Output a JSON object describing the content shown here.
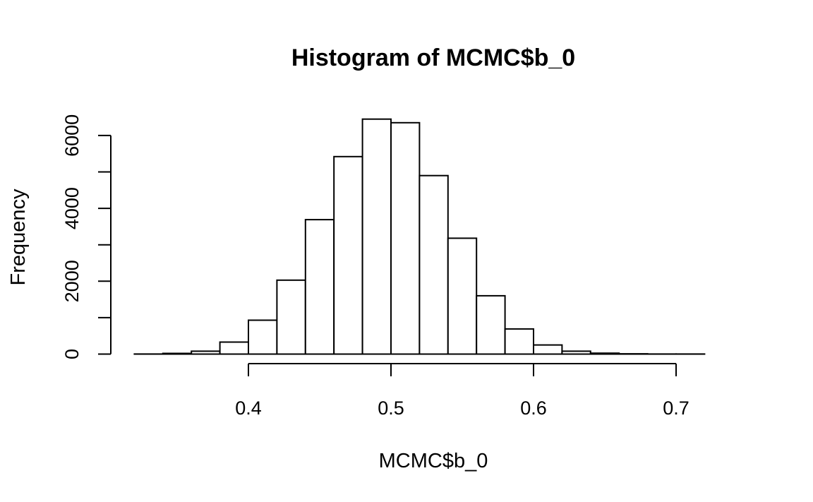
{
  "chart_data": {
    "type": "bar",
    "title": "Histogram of MCMC$b_0",
    "xlabel": "MCMC$b_0",
    "ylabel": "Frequency",
    "x_ticks": [
      0.4,
      0.5,
      0.6,
      0.7
    ],
    "x_tick_labels": [
      "0.4",
      "0.5",
      "0.6",
      "0.7"
    ],
    "y_ticks": [
      0,
      2000,
      4000,
      6000
    ],
    "y_tick_labels": [
      "0",
      "2000",
      "4000",
      "6000"
    ],
    "y_minor_ticks": [
      1000,
      3000,
      5000
    ],
    "bin_width": 0.02,
    "bins": [
      {
        "start": 0.32,
        "end": 0.34,
        "count": 2
      },
      {
        "start": 0.34,
        "end": 0.36,
        "count": 20
      },
      {
        "start": 0.36,
        "end": 0.38,
        "count": 80
      },
      {
        "start": 0.38,
        "end": 0.4,
        "count": 330
      },
      {
        "start": 0.4,
        "end": 0.42,
        "count": 930
      },
      {
        "start": 0.42,
        "end": 0.44,
        "count": 2030
      },
      {
        "start": 0.44,
        "end": 0.46,
        "count": 3690
      },
      {
        "start": 0.46,
        "end": 0.48,
        "count": 5420
      },
      {
        "start": 0.48,
        "end": 0.5,
        "count": 6450
      },
      {
        "start": 0.5,
        "end": 0.52,
        "count": 6350
      },
      {
        "start": 0.52,
        "end": 0.54,
        "count": 4900
      },
      {
        "start": 0.54,
        "end": 0.56,
        "count": 3180
      },
      {
        "start": 0.56,
        "end": 0.58,
        "count": 1600
      },
      {
        "start": 0.58,
        "end": 0.6,
        "count": 690
      },
      {
        "start": 0.6,
        "end": 0.62,
        "count": 250
      },
      {
        "start": 0.62,
        "end": 0.64,
        "count": 80
      },
      {
        "start": 0.64,
        "end": 0.66,
        "count": 25
      },
      {
        "start": 0.66,
        "end": 0.68,
        "count": 8
      },
      {
        "start": 0.68,
        "end": 0.7,
        "count": 2
      },
      {
        "start": 0.7,
        "end": 0.72,
        "count": 1
      },
      {
        "start": 0.72,
        "end": 0.74,
        "count": 0
      }
    ],
    "xlim": [
      0.32,
      0.74
    ],
    "ylim": [
      0,
      6450
    ],
    "grid": false,
    "legend": "none",
    "colors": {
      "bar_fill": "#ffffff",
      "bar_stroke": "#000000",
      "background": "#ffffff"
    }
  }
}
